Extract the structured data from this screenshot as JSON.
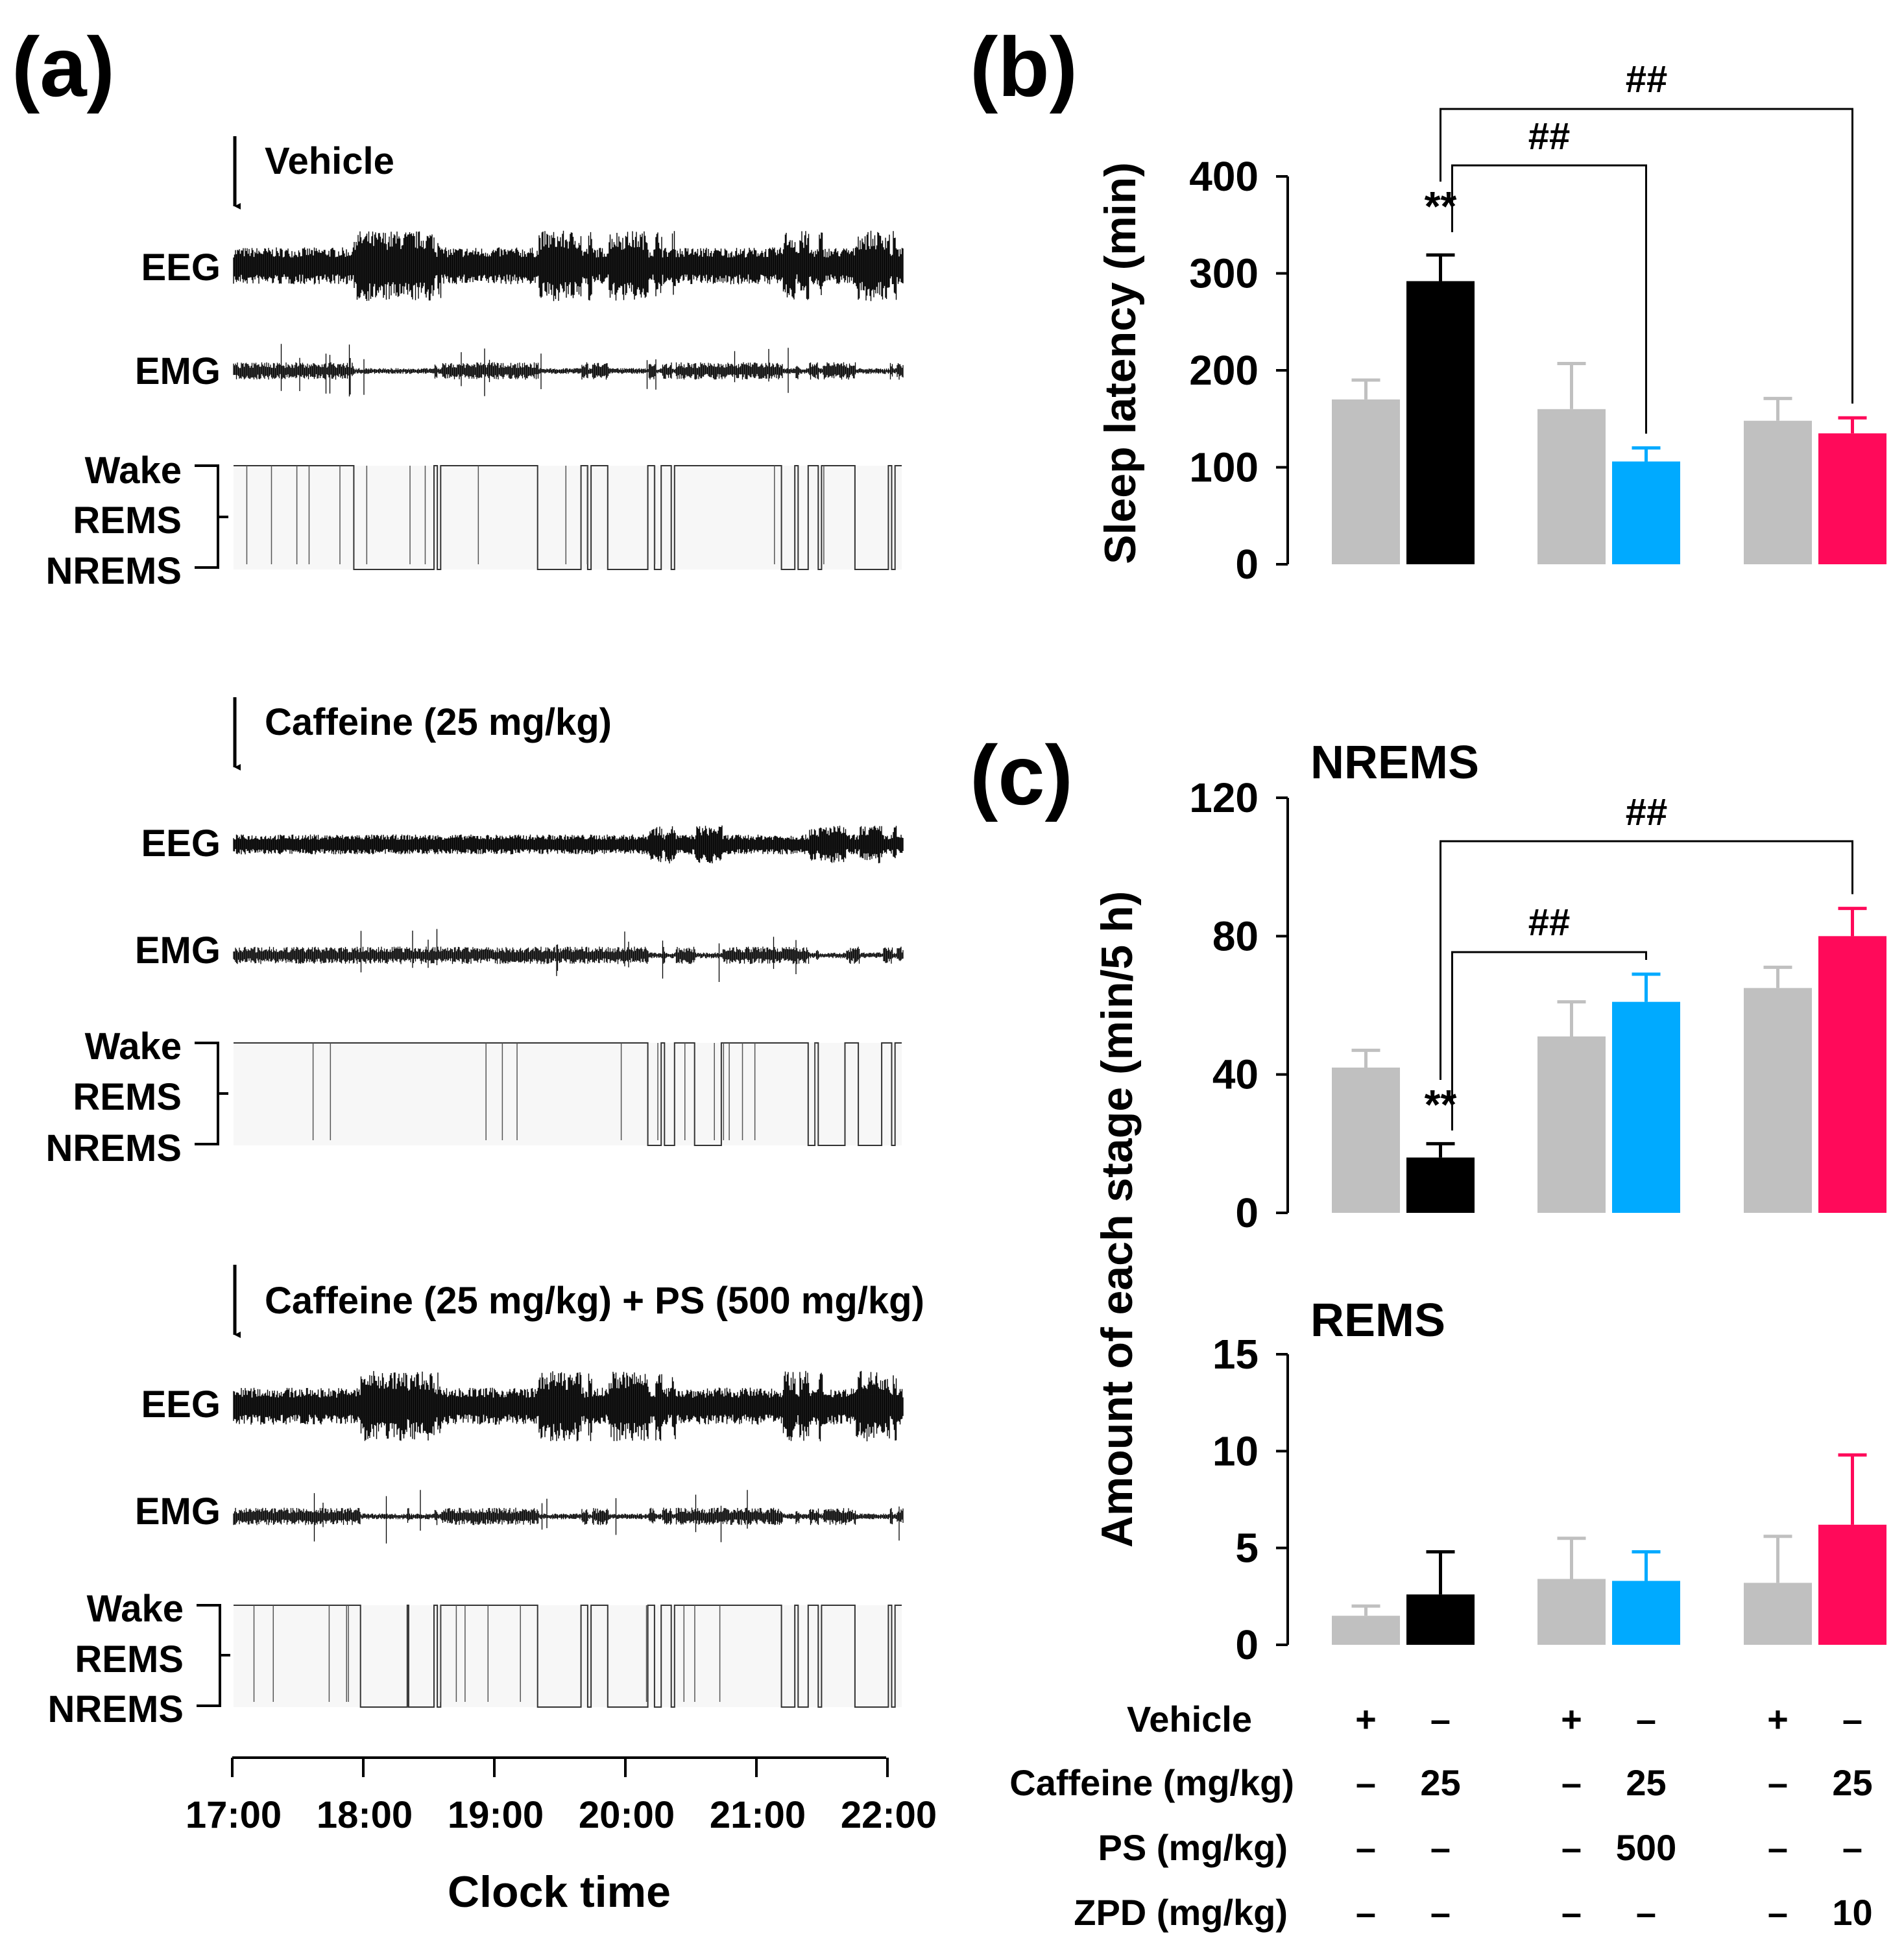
{
  "panels": {
    "a": {
      "label": "(a)"
    },
    "b": {
      "label": "(b)"
    },
    "c": {
      "label": "(c)"
    }
  },
  "traces_panel": {
    "conditions": [
      {
        "title": "Vehicle",
        "eeg_label": "EEG",
        "emg_label": "EMG",
        "stage_labels": [
          "Wake",
          "REMS",
          "NREMS"
        ],
        "sleep_bouts": [
          [
            0.18,
            0.3
          ],
          [
            0.305,
            0.31
          ],
          [
            0.455,
            0.52
          ],
          [
            0.53,
            0.535
          ],
          [
            0.56,
            0.62
          ],
          [
            0.63,
            0.64
          ],
          [
            0.655,
            0.66
          ],
          [
            0.82,
            0.84
          ],
          [
            0.845,
            0.86
          ],
          [
            0.875,
            0.88
          ],
          [
            0.93,
            0.98
          ],
          [
            0.985,
            0.99
          ]
        ]
      },
      {
        "title": "Caffeine (25 mg/kg)",
        "eeg_label": "EEG",
        "emg_label": "EMG",
        "stage_labels": [
          "Wake",
          "REMS",
          "NREMS"
        ],
        "sleep_bouts": [
          [
            0.62,
            0.64
          ],
          [
            0.645,
            0.66
          ],
          [
            0.69,
            0.73
          ],
          [
            0.86,
            0.87
          ],
          [
            0.875,
            0.915
          ],
          [
            0.935,
            0.97
          ],
          [
            0.985,
            0.99
          ]
        ]
      },
      {
        "title": "Caffeine (25 mg/kg) + PS (500 mg/kg)",
        "eeg_label": "EEG",
        "emg_label": "EMG",
        "stage_labels": [
          "Wake",
          "REMS",
          "NREMS"
        ],
        "sleep_bouts": [
          [
            0.19,
            0.26
          ],
          [
            0.262,
            0.3
          ],
          [
            0.305,
            0.31
          ],
          [
            0.455,
            0.52
          ],
          [
            0.53,
            0.535
          ],
          [
            0.56,
            0.62
          ],
          [
            0.63,
            0.64
          ],
          [
            0.655,
            0.66
          ],
          [
            0.82,
            0.84
          ],
          [
            0.845,
            0.86
          ],
          [
            0.875,
            0.88
          ],
          [
            0.93,
            0.98
          ],
          [
            0.985,
            0.99
          ]
        ]
      }
    ],
    "time_axis": {
      "ticks": [
        "17:00",
        "18:00",
        "19:00",
        "20:00",
        "21:00",
        "22:00"
      ],
      "xlabel": "Clock time"
    }
  },
  "treatments": {
    "rows": [
      {
        "label": "Vehicle",
        "values": [
          "+",
          "–",
          "+",
          "–",
          "+",
          "–"
        ]
      },
      {
        "label": "Caffeine (mg/kg)",
        "values": [
          "–",
          "25",
          "–",
          "25",
          "–",
          "25"
        ]
      },
      {
        "label": "PS (mg/kg)",
        "values": [
          "–",
          "–",
          "–",
          "500",
          "–",
          "–"
        ]
      },
      {
        "label": "ZPD (mg/kg)",
        "values": [
          "–",
          "–",
          "–",
          "–",
          "–",
          "10"
        ]
      }
    ]
  },
  "colors": {
    "control": "#c0c0c0",
    "caffeine": "#000000",
    "ps": "#00aaff",
    "zpd": "#ff0a5a"
  },
  "chart_data": [
    {
      "type": "bar",
      "panel": "b",
      "ylabel": "Sleep latency (min)",
      "ylim": [
        0,
        400
      ],
      "yticks": [
        0,
        100,
        200,
        300,
        400
      ],
      "values": [
        170,
        292,
        160,
        106,
        148,
        135
      ],
      "errors": [
        20,
        27,
        47,
        14,
        23,
        16
      ],
      "bar_colors": [
        "#c0c0c0",
        "#000000",
        "#c0c0c0",
        "#00aaff",
        "#c0c0c0",
        "#ff0a5a"
      ],
      "annotations": [
        {
          "text": "**",
          "bar": 1
        },
        {
          "text": "##",
          "from": 1,
          "to": 3
        },
        {
          "text": "##",
          "from": 1,
          "to": 5
        }
      ]
    },
    {
      "type": "bar",
      "panel": "c",
      "title": "NREMS",
      "ylim": [
        0,
        120
      ],
      "yticks": [
        0,
        40,
        80,
        120
      ],
      "values": [
        42,
        16,
        51,
        61,
        65,
        80
      ],
      "errors": [
        5,
        4,
        10,
        8,
        6,
        8
      ],
      "bar_colors": [
        "#c0c0c0",
        "#000000",
        "#c0c0c0",
        "#00aaff",
        "#c0c0c0",
        "#ff0a5a"
      ],
      "annotations": [
        {
          "text": "**",
          "bar": 1
        },
        {
          "text": "##",
          "from": 1,
          "to": 3
        },
        {
          "text": "##",
          "from": 1,
          "to": 5
        }
      ]
    },
    {
      "type": "bar",
      "panel": "c",
      "title": "REMS",
      "ylabel": "Amount of each stage (min/5 h)",
      "ylim": [
        0,
        15
      ],
      "yticks": [
        0,
        5,
        10,
        15
      ],
      "values": [
        1.5,
        2.6,
        3.4,
        3.3,
        3.2,
        6.2
      ],
      "errors": [
        0.5,
        2.2,
        2.1,
        1.5,
        2.4,
        3.6
      ],
      "bar_colors": [
        "#c0c0c0",
        "#000000",
        "#c0c0c0",
        "#00aaff",
        "#c0c0c0",
        "#ff0a5a"
      ],
      "annotations": []
    }
  ]
}
